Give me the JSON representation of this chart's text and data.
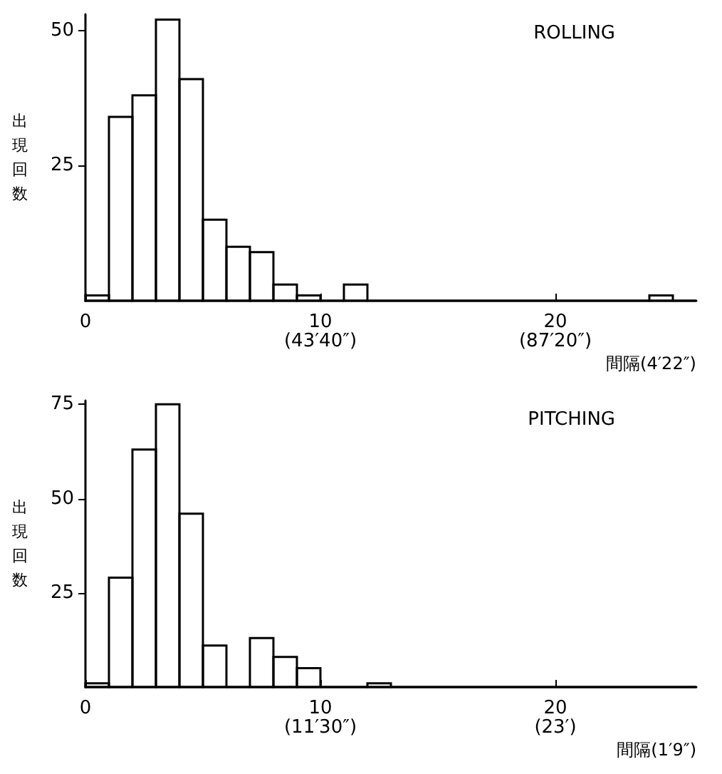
{
  "chart_data": [
    {
      "type": "histogram",
      "title": "ROLLING",
      "ylabel": "出現回数",
      "xlabel": "間隔(4′22″)",
      "bins": [
        0,
        1,
        2,
        3,
        4,
        5,
        6,
        7,
        8,
        9,
        10,
        11,
        12,
        13,
        14,
        15,
        16,
        17,
        18,
        19,
        20,
        21,
        22,
        23,
        24,
        25,
        26
      ],
      "values": [
        1,
        34,
        38,
        52,
        41,
        15,
        10,
        9,
        3,
        1,
        0,
        3,
        0,
        0,
        0,
        0,
        0,
        0,
        0,
        0,
        0,
        0,
        0,
        0,
        1,
        0
      ],
      "color": "#000000",
      "xlim": [
        0,
        26
      ],
      "ylim": [
        0,
        53
      ],
      "xticks": [
        0,
        10,
        20
      ],
      "yticks": [
        25,
        50
      ],
      "grid": false,
      "annotations": [
        "(43′40″)",
        "(87′20″)"
      ]
    },
    {
      "type": "histogram",
      "title": "PITCHING",
      "ylabel": "出現回数",
      "xlabel": "間隔(1′9″)",
      "bins": [
        0,
        1,
        2,
        3,
        4,
        5,
        6,
        7,
        8,
        9,
        10,
        11,
        12,
        13,
        14,
        15,
        16,
        17,
        18,
        19,
        20,
        21,
        22,
        23,
        24,
        25,
        26
      ],
      "values": [
        1,
        29,
        63,
        75,
        46,
        11,
        0,
        13,
        8,
        5,
        0,
        0,
        1,
        0,
        0,
        0,
        0,
        0,
        0,
        0,
        0,
        0,
        0,
        0,
        0,
        0
      ],
      "color": "#000000",
      "xlim": [
        0,
        26
      ],
      "ylim": [
        0,
        76
      ],
      "xticks": [
        0,
        10,
        20
      ],
      "yticks": [
        25,
        50,
        75
      ],
      "grid": false,
      "annotations": [
        "(11′30″)",
        "(23′)"
      ]
    }
  ]
}
